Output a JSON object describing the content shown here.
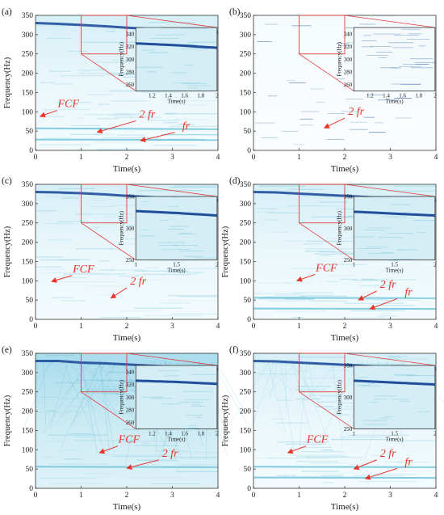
{
  "figure": {
    "panel_labels": [
      "(a)",
      "(b)",
      "(c)",
      "(d)",
      "(e)",
      "(f)"
    ],
    "xlabel": "Time(s)",
    "ylabel": "Frequency(Hz)",
    "inset_xlabel": "Time(s)",
    "inset_ylabel": "Frequency(Hz)",
    "colors": {
      "background": "#ffffff",
      "spectrogram_light": "#e3f4f8",
      "spectrogram_mid": "#8fd0e2",
      "ridge_dark": "#1f4e9c",
      "annotation": "#e8342a"
    }
  },
  "chart_data": [
    {
      "type": "heatmap",
      "panel": "(a)",
      "xlabel": "Time(s)",
      "ylabel": "Frequency(Hz)",
      "xlim": [
        0,
        4
      ],
      "ylim": [
        0,
        350
      ],
      "xticks": [
        "0",
        "1",
        "2",
        "3",
        "4"
      ],
      "yticks": [
        "0",
        "50",
        "100",
        "150",
        "200",
        "250",
        "300",
        "350"
      ],
      "series": [
        {
          "name": "FCF",
          "x": [
            0,
            0.5,
            1,
            1.5,
            2,
            2.5,
            3,
            3.5,
            4
          ],
          "y": [
            330,
            328,
            325,
            322,
            318,
            315,
            312,
            308,
            306
          ]
        },
        {
          "name": "2 fr",
          "x": [
            0,
            4
          ],
          "y": [
            57,
            55
          ]
        },
        {
          "name": "fr",
          "x": [
            0,
            4
          ],
          "y": [
            28,
            27
          ]
        }
      ],
      "annotations": [
        {
          "text": "FCF",
          "tx": 0.72,
          "ty": 112,
          "ax": 0.1,
          "ay": 88
        },
        {
          "text": "2 fr",
          "tx": 2.45,
          "ty": 85,
          "ax": 1.35,
          "ay": 47
        },
        {
          "text": "fr",
          "tx": 3.3,
          "ty": 55,
          "ax": 2.3,
          "ay": 25
        }
      ],
      "inset": {
        "xlim": [
          1,
          2
        ],
        "ylim": [
          250,
          350
        ],
        "xticks": [
          "1.2",
          "1.4",
          "1.6",
          "1.8",
          "2"
        ],
        "yticks": [
          "260",
          "280",
          "300",
          "320",
          "340"
        ]
      }
    },
    {
      "type": "heatmap",
      "panel": "(b)",
      "xlabel": "Time(s)",
      "ylabel": "",
      "xlim": [
        0,
        4
      ],
      "ylim": [
        0,
        350
      ],
      "xticks": [
        "0",
        "1",
        "2",
        "3",
        "4"
      ],
      "yticks": [
        "0",
        "50",
        "100",
        "150",
        "200",
        "250",
        "300",
        "350"
      ],
      "series": [],
      "annotations": [
        {
          "text": "2 fr",
          "tx": 2.25,
          "ty": 92,
          "ax": 1.55,
          "ay": 58
        }
      ],
      "inset": {
        "xlim": [
          1,
          2
        ],
        "ylim": [
          250,
          350
        ],
        "xticks": [
          "1.2",
          "1.4",
          "1.6",
          "1.8",
          "2"
        ],
        "yticks": [
          "260",
          "280",
          "300",
          "320",
          "340"
        ]
      }
    },
    {
      "type": "heatmap",
      "panel": "(c)",
      "xlabel": "Time(s)",
      "ylabel": "Frequency(Hz)",
      "xlim": [
        0,
        4
      ],
      "ylim": [
        0,
        350
      ],
      "xticks": [
        "0",
        "1",
        "2",
        "3",
        "4"
      ],
      "yticks": [
        "0",
        "50",
        "100",
        "150",
        "200",
        "250",
        "300",
        "350"
      ],
      "series": [
        {
          "name": "FCF",
          "x": [
            0,
            0.5,
            1,
            1.5,
            2,
            2.5,
            3,
            3.5,
            4
          ],
          "y": [
            330,
            329,
            327,
            324,
            320,
            317,
            314,
            311,
            309
          ]
        }
      ],
      "annotations": [
        {
          "text": "FCF",
          "tx": 1.05,
          "ty": 122,
          "ax": 0.35,
          "ay": 98
        },
        {
          "text": "2 fr",
          "tx": 2.25,
          "ty": 90,
          "ax": 1.65,
          "ay": 55
        }
      ],
      "inset": {
        "xlim": [
          1,
          2
        ],
        "ylim": [
          250,
          350
        ],
        "xticks": [
          "1",
          "1.5",
          "2"
        ],
        "yticks": [
          "250",
          "300",
          "350"
        ]
      }
    },
    {
      "type": "heatmap",
      "panel": "(d)",
      "xlabel": "Time(s)",
      "ylabel": "Frequency(Hz)",
      "xlim": [
        0,
        4
      ],
      "ylim": [
        0,
        350
      ],
      "xticks": [
        "0",
        "1",
        "2",
        "3",
        "4"
      ],
      "yticks": [
        "0",
        "50",
        "100",
        "150",
        "200",
        "250",
        "300",
        "350"
      ],
      "series": [
        {
          "name": "FCF",
          "x": [
            0,
            0.5,
            1,
            1.5,
            2,
            2.5,
            3,
            3.5,
            4
          ],
          "y": [
            330,
            329,
            326,
            323,
            320,
            317,
            314,
            310,
            308
          ]
        },
        {
          "name": "2 fr",
          "x": [
            0,
            4
          ],
          "y": [
            56,
            55
          ]
        },
        {
          "name": "fr",
          "x": [
            0,
            4
          ],
          "y": [
            28,
            27
          ]
        }
      ],
      "annotations": [
        {
          "text": "FCF",
          "tx": 1.6,
          "ty": 125,
          "ax": 0.95,
          "ay": 100
        },
        {
          "text": "2 fr",
          "tx": 2.95,
          "ty": 82,
          "ax": 2.3,
          "ay": 50
        },
        {
          "text": "fr",
          "tx": 3.4,
          "ty": 62,
          "ax": 2.55,
          "ay": 27
        }
      ],
      "inset": {
        "xlim": [
          1,
          2
        ],
        "ylim": [
          250,
          350
        ],
        "xticks": [
          "1",
          "1.5",
          "2"
        ],
        "yticks": [
          "250",
          "300",
          "350"
        ]
      }
    },
    {
      "type": "heatmap",
      "panel": "(e)",
      "xlabel": "Time(s)",
      "ylabel": "Frequency(Hz)",
      "xlim": [
        0,
        4
      ],
      "ylim": [
        0,
        350
      ],
      "xticks": [
        "0",
        "1",
        "2",
        "3",
        "4"
      ],
      "yticks": [
        "0",
        "50",
        "100",
        "150",
        "200",
        "250",
        "300",
        "350"
      ],
      "series": [
        {
          "name": "FCF",
          "x": [
            0,
            0.5,
            1,
            1.5,
            2,
            2.5,
            3,
            3.5,
            4
          ],
          "y": [
            330,
            330,
            326,
            324,
            321,
            318,
            315,
            311,
            309
          ]
        },
        {
          "name": "2 fr",
          "x": [
            0,
            4
          ],
          "y": [
            56,
            55
          ]
        }
      ],
      "annotations": [
        {
          "text": "FCF",
          "tx": 2.05,
          "ty": 118,
          "ax": 1.4,
          "ay": 92
        },
        {
          "text": "2 fr",
          "tx": 2.95,
          "ty": 82,
          "ax": 2.0,
          "ay": 52
        }
      ],
      "inset": {
        "xlim": [
          1,
          2
        ],
        "ylim": [
          250,
          350
        ],
        "xticks": [
          "1.2",
          "1.4",
          "1.6",
          "1.8",
          "2"
        ],
        "yticks": [
          "260",
          "280",
          "300",
          "320",
          "340"
        ]
      }
    },
    {
      "type": "heatmap",
      "panel": "(f)",
      "xlabel": "Time(s)",
      "ylabel": "Frequency(Hz)",
      "xlim": [
        0,
        4
      ],
      "ylim": [
        0,
        350
      ],
      "xticks": [
        "0",
        "1",
        "2",
        "3",
        "4"
      ],
      "yticks": [
        "0",
        "50",
        "100",
        "150",
        "200",
        "250",
        "300",
        "350"
      ],
      "series": [
        {
          "name": "FCF",
          "x": [
            0,
            0.5,
            1,
            1.5,
            2,
            2.5,
            3,
            3.5,
            4
          ],
          "y": [
            330,
            329,
            326,
            323,
            320,
            317,
            314,
            311,
            309
          ]
        },
        {
          "name": "2 fr",
          "x": [
            0,
            4
          ],
          "y": [
            56,
            55
          ]
        },
        {
          "name": "fr",
          "x": [
            0,
            4
          ],
          "y": [
            28,
            27
          ]
        }
      ],
      "annotations": [
        {
          "text": "FCF",
          "tx": 1.4,
          "ty": 118,
          "ax": 0.75,
          "ay": 92
        },
        {
          "text": "2 fr",
          "tx": 2.95,
          "ty": 82,
          "ax": 2.2,
          "ay": 50
        },
        {
          "text": "fr",
          "tx": 3.4,
          "ty": 60,
          "ax": 2.45,
          "ay": 25
        }
      ],
      "inset": {
        "xlim": [
          1,
          2
        ],
        "ylim": [
          250,
          350
        ],
        "xticks": [
          "1",
          "1.5",
          "2"
        ],
        "yticks": [
          "250",
          "300",
          "350"
        ]
      }
    }
  ]
}
